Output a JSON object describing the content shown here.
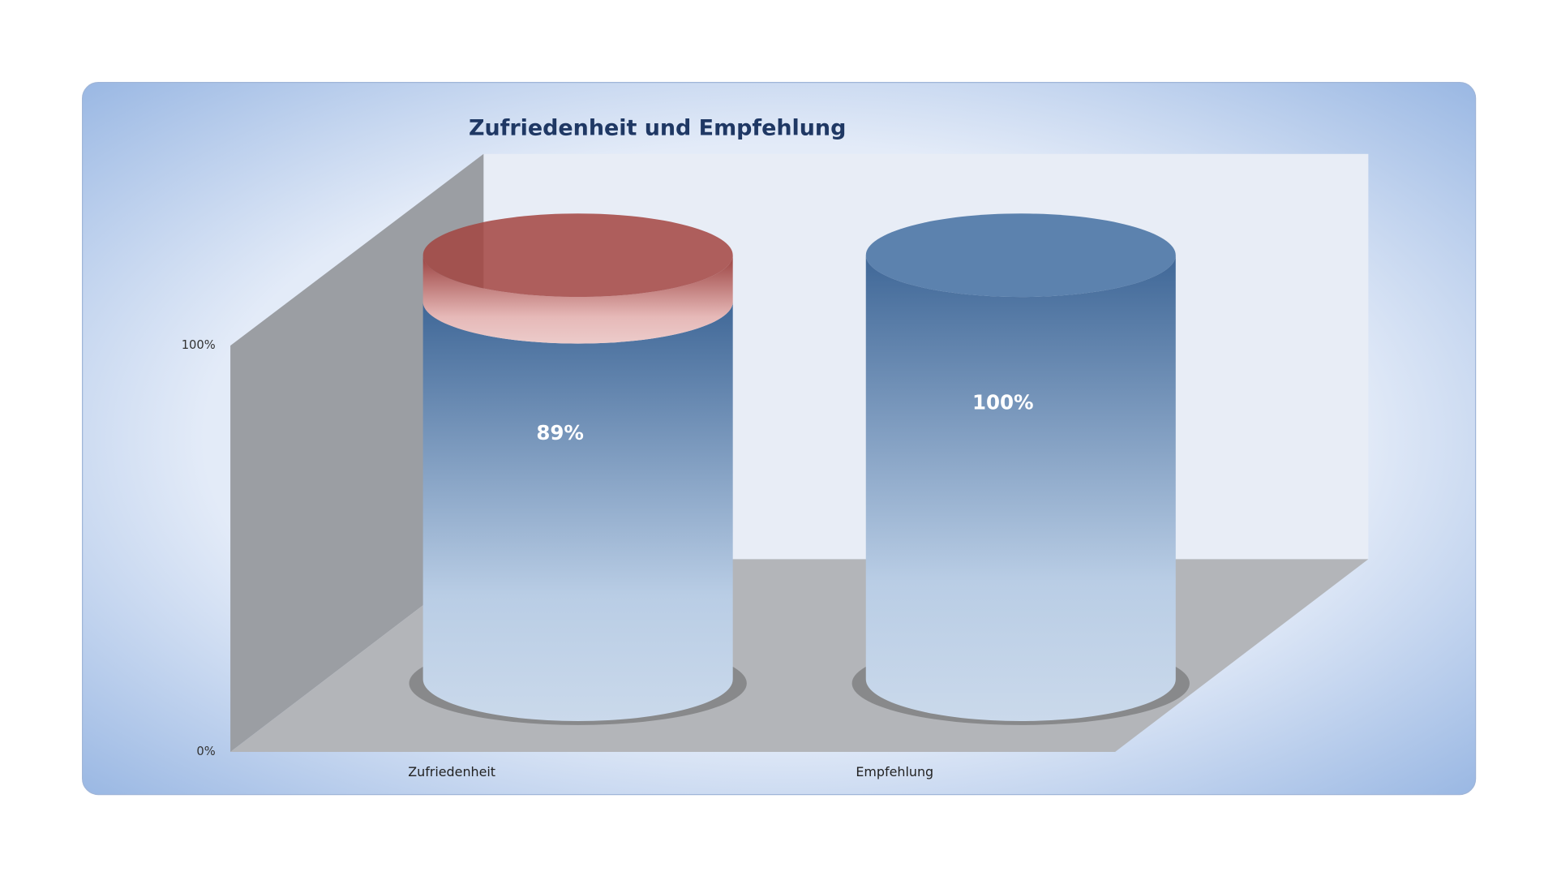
{
  "chart_data": {
    "type": "cylinder3d-stacked",
    "title": "Zufriedenheit und Empfehlung",
    "categories": [
      "Zufriedenheit",
      "Empfehlung"
    ],
    "series": [
      {
        "color": "#4f81bd",
        "values": [
          89,
          100
        ],
        "value_labels": [
          "89%",
          "100%"
        ]
      },
      {
        "color": "#c0504d",
        "values": [
          11,
          0
        ]
      }
    ],
    "ylim": [
      0,
      100
    ],
    "yticks": [
      {
        "value": 0,
        "label": "0%"
      },
      {
        "value": 100,
        "label": "100%"
      }
    ]
  }
}
